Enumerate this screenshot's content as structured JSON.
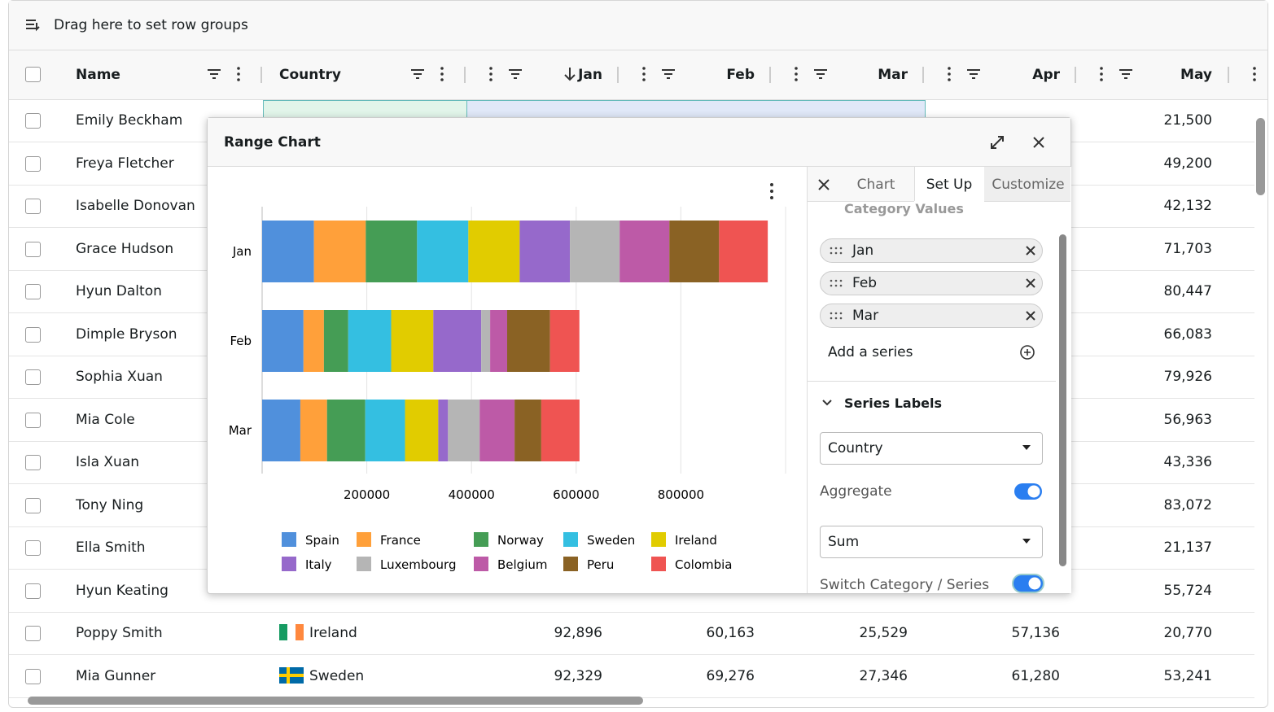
{
  "toolbar": {
    "group_hint": "Drag here to set row groups"
  },
  "grid": {
    "columns": [
      "Name",
      "Country",
      "Jan",
      "Feb",
      "Mar",
      "Apr",
      "May"
    ],
    "rows": [
      {
        "name": "Emily Beckham",
        "may": "21,500"
      },
      {
        "name": "Freya Fletcher",
        "may": "49,200"
      },
      {
        "name": "Isabelle Donovan",
        "may": "42,132"
      },
      {
        "name": "Grace Hudson",
        "may": "71,703"
      },
      {
        "name": "Hyun Dalton",
        "may": "80,447"
      },
      {
        "name": "Dimple Bryson",
        "may": "66,083"
      },
      {
        "name": "Sophia Xuan",
        "may": "79,926"
      },
      {
        "name": "Mia Cole",
        "may": "56,963"
      },
      {
        "name": "Isla Xuan",
        "may": "43,336"
      },
      {
        "name": "Tony Ning",
        "may": "83,072"
      },
      {
        "name": "Ella Smith",
        "may": "21,137"
      },
      {
        "name": "Hyun Keating",
        "may": "55,724"
      },
      {
        "name": "Poppy Smith",
        "country": "Ireland",
        "jan": "92,896",
        "feb": "60,163",
        "mar": "25,529",
        "apr": "57,136",
        "may": "20,770"
      },
      {
        "name": "Mia Gunner",
        "country": "Sweden",
        "jan": "92,329",
        "feb": "69,276",
        "mar": "27,346",
        "apr": "61,280",
        "may": "53,241"
      }
    ]
  },
  "dialog": {
    "title": "Range Chart",
    "tabs": [
      "Chart",
      "Set Up",
      "Customize"
    ],
    "category_section": "Category Values",
    "category_chips": [
      "Jan",
      "Feb",
      "Mar"
    ],
    "add_series": "Add a series",
    "series_section": "Series Labels",
    "series_select": "Country",
    "aggregate_label": "Aggregate",
    "aggregate_select": "Sum",
    "switch_label": "Switch Category / Series"
  },
  "chart_data": {
    "type": "bar",
    "horizontal": true,
    "stacked": true,
    "legend": "bottom",
    "grid": true,
    "categories": [
      "Jan",
      "Feb",
      "Mar"
    ],
    "xlim": [
      0,
      1000000
    ],
    "xticks": [
      200000,
      400000,
      600000,
      800000
    ],
    "series": [
      {
        "name": "Spain",
        "color": "#5090dc",
        "values": [
          99000,
          79000,
          73000
        ]
      },
      {
        "name": "France",
        "color": "#ffa03a",
        "values": [
          99000,
          39000,
          51000
        ]
      },
      {
        "name": "Norway",
        "color": "#459d55",
        "values": [
          98000,
          46500,
          73000
        ]
      },
      {
        "name": "Sweden",
        "color": "#34bfe1",
        "values": [
          98000,
          82000,
          76000
        ]
      },
      {
        "name": "Ireland",
        "color": "#e1cc00",
        "values": [
          98000,
          80600,
          63500
        ]
      },
      {
        "name": "Italy",
        "color": "#9669cb",
        "values": [
          96000,
          91500,
          18600
        ]
      },
      {
        "name": "Luxembourg",
        "color": "#b5b5b5",
        "values": [
          95000,
          17000,
          60500
        ]
      },
      {
        "name": "Belgium",
        "color": "#bd5aa7",
        "values": [
          95000,
          32500,
          66700
        ]
      },
      {
        "name": "Peru",
        "color": "#8a6224",
        "values": [
          95000,
          82000,
          51000
        ]
      },
      {
        "name": "Colombia",
        "color": "#ef5452",
        "values": [
          93000,
          56000,
          73000
        ]
      }
    ]
  }
}
